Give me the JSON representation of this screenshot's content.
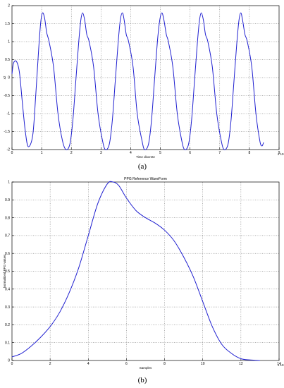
{
  "chart_data": [
    {
      "type": "line",
      "title": "",
      "caption": "(a)",
      "xlabel": "Time discrete",
      "ylabel": "x2",
      "x_multiplier": "x 10⁴",
      "xlim": [
        0,
        9
      ],
      "ylim": [
        -2,
        2
      ],
      "xticks": [
        0,
        1,
        2,
        3,
        4,
        5,
        6,
        7,
        8,
        9
      ],
      "yticks": [
        -2,
        -1.5,
        -1,
        -0.5,
        0,
        0.5,
        1,
        1.5,
        2
      ],
      "ytick_labels": [
        "-2",
        "-1.5",
        "-1",
        "-0.5",
        "0",
        "0.5",
        "1",
        "1.5",
        "2"
      ],
      "grid": true,
      "color": "#2020d0",
      "series": [
        {
          "x": [
            0,
            0.05,
            0.15,
            0.25,
            0.35,
            0.45,
            0.55,
            0.7,
            0.8,
            0.9,
            0.97,
            1.03,
            1.1,
            1.17,
            1.25,
            1.4,
            1.55,
            1.7,
            1.82,
            1.95,
            2.05,
            2.15,
            2.25,
            2.32,
            2.38,
            2.45,
            2.52,
            2.6,
            2.75,
            2.9,
            3.05,
            3.15,
            3.28,
            3.38,
            3.48,
            3.58,
            3.65,
            3.72,
            3.78,
            3.85,
            3.93,
            4.08,
            4.22,
            4.38,
            4.47,
            4.6,
            4.7,
            4.8,
            4.9,
            4.98,
            5.05,
            5.12,
            5.2,
            5.27,
            5.42,
            5.57,
            5.72,
            5.82,
            5.95,
            6.05,
            6.15,
            6.25,
            6.32,
            6.38,
            6.45,
            6.52,
            6.6,
            6.75,
            6.9,
            7.05,
            7.15,
            7.28,
            7.38,
            7.48,
            7.58,
            7.65,
            7.71,
            7.77,
            7.85,
            7.93,
            8.08,
            8.22,
            8.35,
            8.42,
            8.48
          ],
          "y": [
            0.1,
            0.4,
            0.45,
            0.15,
            -0.7,
            -1.5,
            -1.92,
            -1.6,
            -0.5,
            0.8,
            1.55,
            1.8,
            1.65,
            1.25,
            1.0,
            0.3,
            -1.0,
            -1.75,
            -2.0,
            -1.85,
            -1.2,
            -0.1,
            1.0,
            1.6,
            1.8,
            1.6,
            1.2,
            1.0,
            0.3,
            -1.0,
            -1.75,
            -2.0,
            -1.85,
            -1.2,
            -0.1,
            1.0,
            1.6,
            1.8,
            1.6,
            1.2,
            1.0,
            0.3,
            -1.0,
            -1.75,
            -2.0,
            -1.85,
            -1.2,
            -0.1,
            1.0,
            1.6,
            1.8,
            1.6,
            1.2,
            1.0,
            0.3,
            -1.0,
            -1.75,
            -2.0,
            -1.85,
            -1.2,
            -0.1,
            1.0,
            1.6,
            1.8,
            1.6,
            1.2,
            1.0,
            0.3,
            -1.0,
            -1.75,
            -2.0,
            -1.85,
            -1.2,
            -0.1,
            1.0,
            1.6,
            1.8,
            1.6,
            1.2,
            1.0,
            0.3,
            -1.0,
            -1.75,
            -1.9,
            -1.8
          ]
        }
      ]
    },
    {
      "type": "line",
      "title": "PPG Reference WaveForm",
      "caption": "(b)",
      "xlabel": "Samples",
      "ylabel": "Normalized PPG values",
      "x_multiplier": "x 10⁴",
      "xlim": [
        0,
        14
      ],
      "ylim": [
        0,
        1
      ],
      "xticks": [
        0,
        2,
        4,
        6,
        8,
        10,
        12,
        14
      ],
      "yticks": [
        0,
        0.1,
        0.2,
        0.3,
        0.4,
        0.5,
        0.6,
        0.7,
        0.8,
        0.9,
        1
      ],
      "ytick_labels": [
        "0",
        "0.1",
        "0.2",
        "0.3",
        "0.4",
        "0.5",
        "0.6",
        "0.7",
        "0.8",
        "0.9",
        "1"
      ],
      "grid": true,
      "color": "#2020d0",
      "series": [
        {
          "x": [
            0,
            0.5,
            1,
            1.5,
            2,
            2.5,
            3,
            3.5,
            4,
            4.5,
            5,
            5.3,
            5.6,
            6,
            6.5,
            7,
            7.5,
            8,
            8.5,
            9,
            9.5,
            10,
            10.5,
            11,
            11.5,
            12,
            12.5,
            13
          ],
          "y": [
            0.02,
            0.04,
            0.08,
            0.13,
            0.19,
            0.27,
            0.38,
            0.52,
            0.7,
            0.88,
            0.99,
            1.0,
            0.98,
            0.91,
            0.84,
            0.8,
            0.77,
            0.73,
            0.67,
            0.58,
            0.47,
            0.33,
            0.19,
            0.09,
            0.04,
            0.01,
            0.003,
            0
          ]
        }
      ]
    }
  ]
}
